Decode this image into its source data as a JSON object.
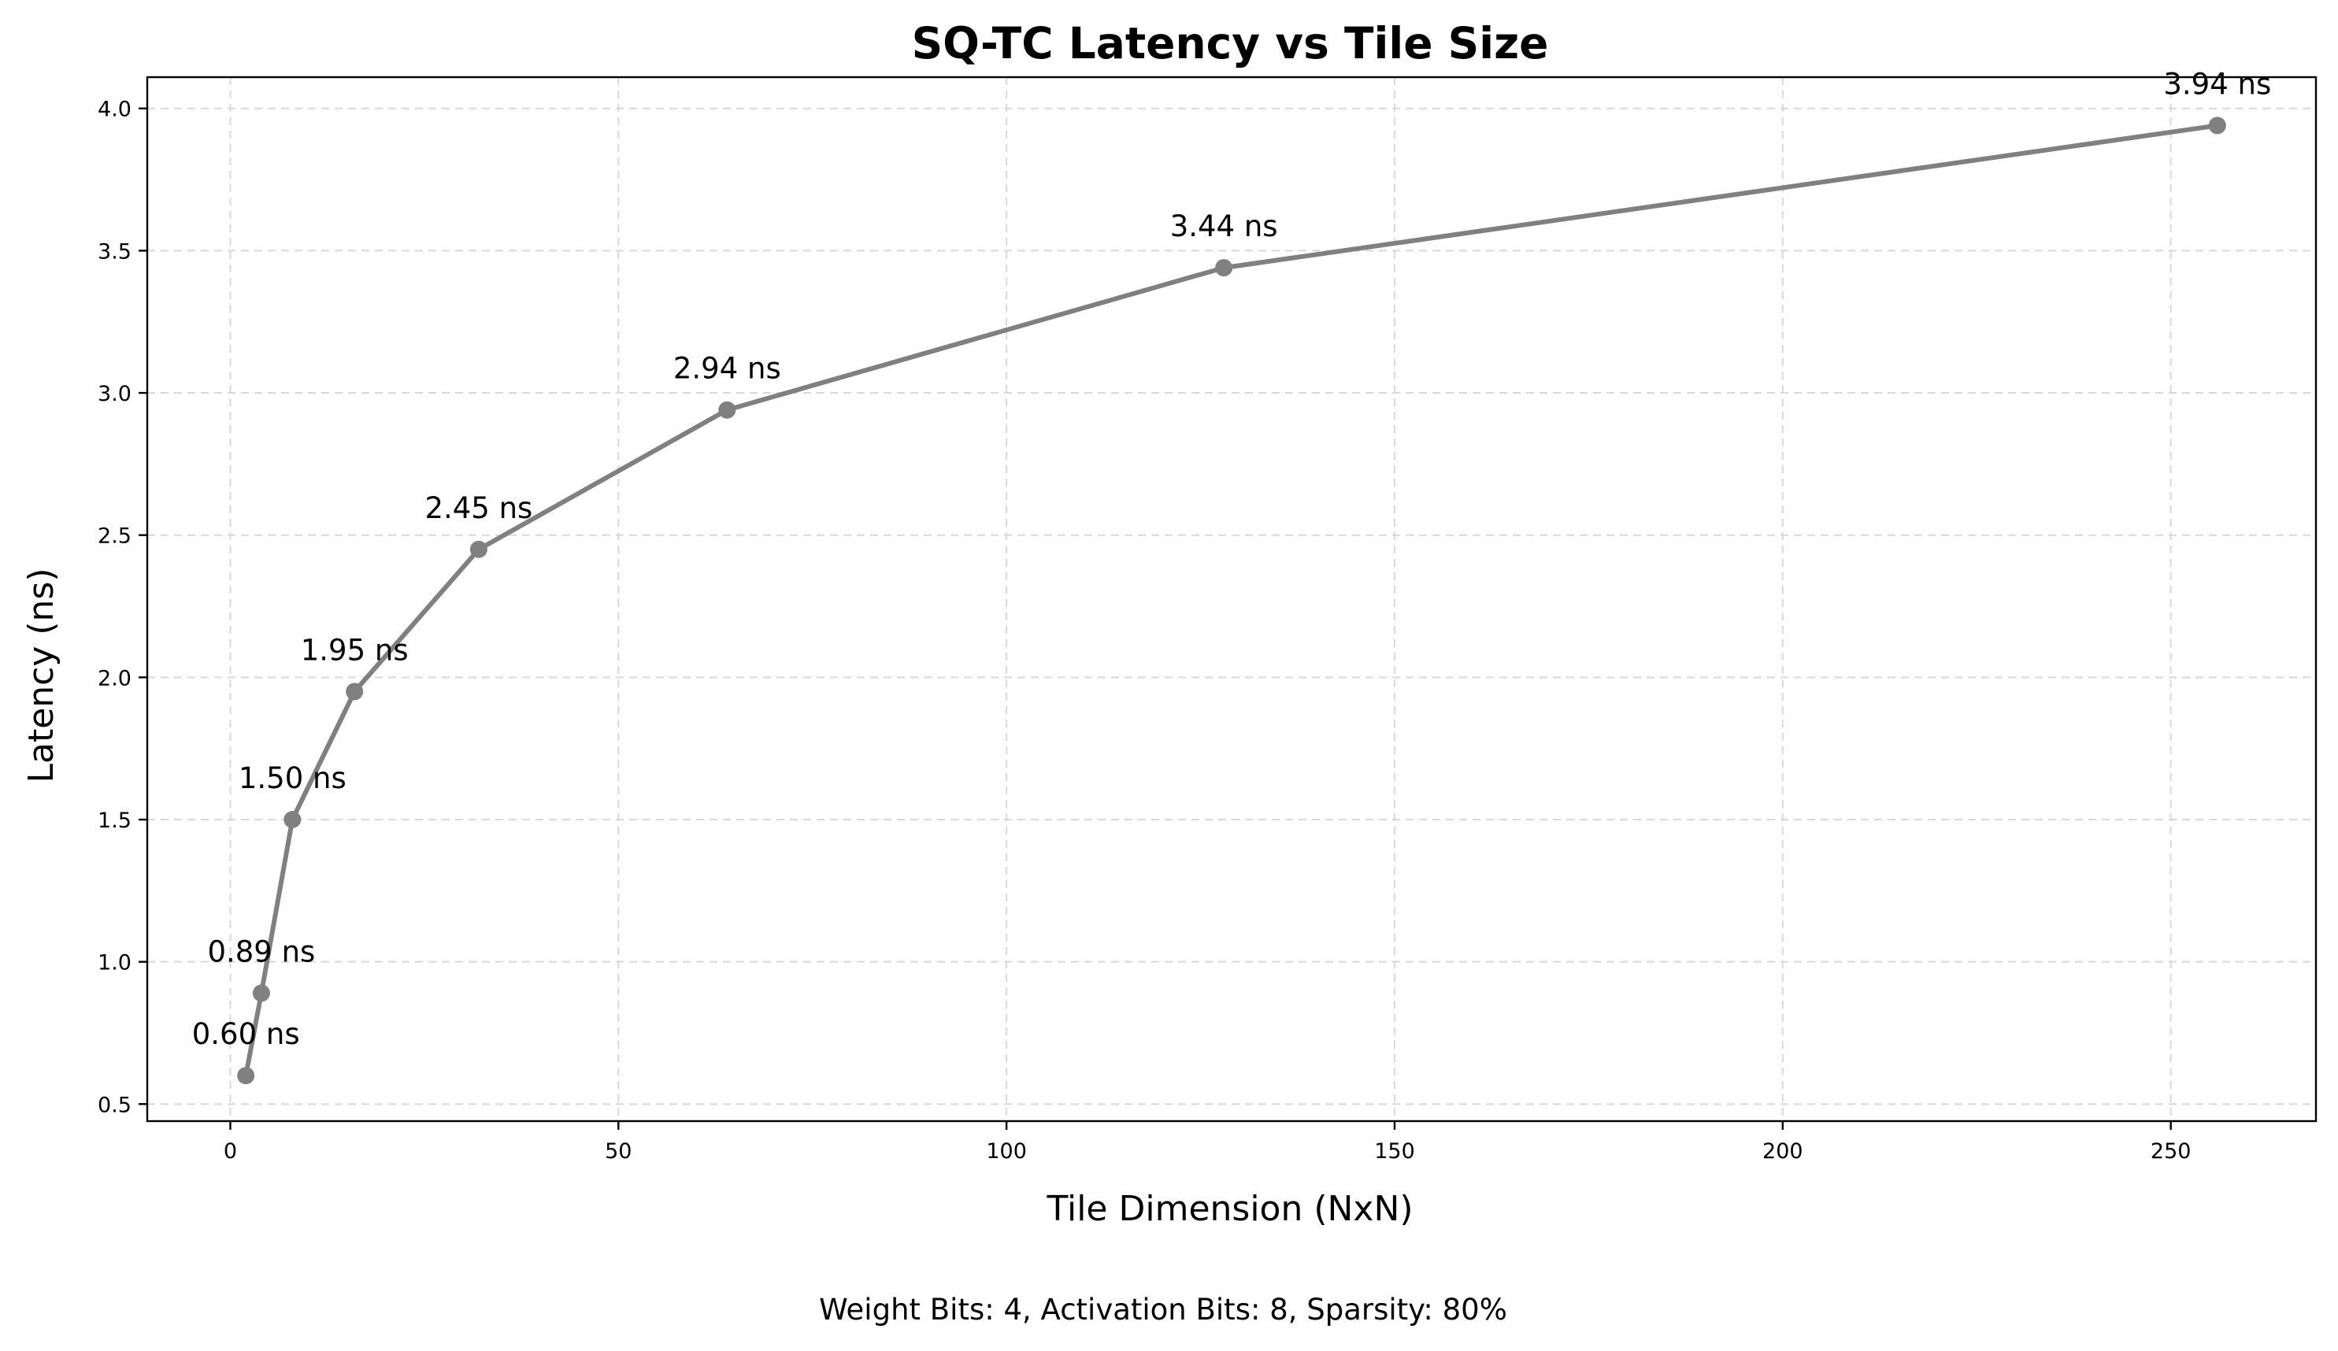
{
  "chart_data": {
    "type": "line",
    "title": "SQ-TC Latency vs Tile Size",
    "xlabel": "Tile Dimension (NxN)",
    "ylabel": "Latency (ns)",
    "footnote": "Weight Bits: 4, Activation Bits: 8, Sparsity: 80%",
    "xlim": [
      -10.7,
      268.7
    ],
    "ylim": [
      0.44,
      4.11
    ],
    "xticks": [
      0,
      50,
      100,
      150,
      200,
      250
    ],
    "xtick_labels": [
      "0",
      "50",
      "100",
      "150",
      "200",
      "250"
    ],
    "yticks": [
      0.5,
      1.0,
      1.5,
      2.0,
      2.5,
      3.0,
      3.5,
      4.0
    ],
    "ytick_labels": [
      "0.5",
      "1.0",
      "1.5",
      "2.0",
      "2.5",
      "3.0",
      "3.5",
      "4.0"
    ],
    "grid": true,
    "series": [
      {
        "x": [
          2,
          4,
          8,
          16,
          32,
          64,
          128,
          256
        ],
        "y": [
          0.6,
          0.89,
          1.5,
          1.95,
          2.45,
          2.94,
          3.44,
          3.94
        ],
        "labels": [
          "0.60 ns",
          "0.89 ns",
          "1.50 ns",
          "1.95 ns",
          "2.45 ns",
          "2.94 ns",
          "3.44 ns",
          "3.94 ns"
        ],
        "color": "#808080",
        "marker": "circle"
      }
    ]
  }
}
